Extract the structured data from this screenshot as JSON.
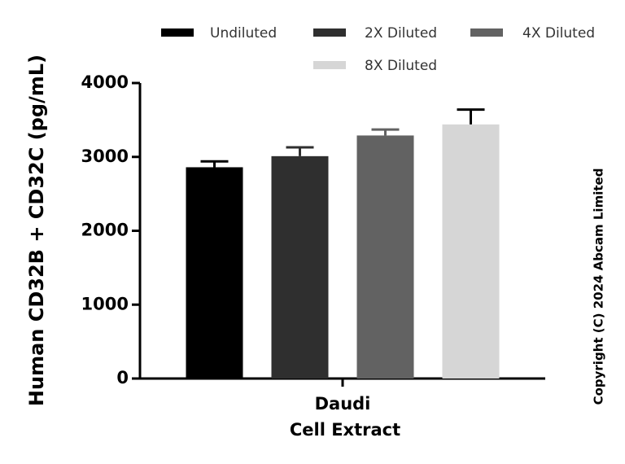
{
  "chart_data": {
    "type": "bar",
    "y_label": "Human CD32B + CD32C (pg/mL)",
    "x_label": "Cell Extract",
    "categories": [
      "Daudi"
    ],
    "series": [
      {
        "name": "Undiluted",
        "color": "#000000",
        "values": [
          2860
        ],
        "errors": [
          80
        ]
      },
      {
        "name": "2X Diluted",
        "color": "#2f2f2f",
        "values": [
          3010
        ],
        "errors": [
          120
        ]
      },
      {
        "name": "4X Diluted",
        "color": "#626262",
        "values": [
          3290
        ],
        "errors": [
          80
        ]
      },
      {
        "name": "8X Diluted",
        "color": "#d6d6d6",
        "values": [
          3440
        ],
        "errors": [
          200
        ]
      }
    ],
    "ylim": [
      0,
      4000
    ],
    "yticks": [
      0,
      1000,
      2000,
      3000,
      4000
    ],
    "copyright": "Copyright (C) 2024 Abcam Limited"
  }
}
